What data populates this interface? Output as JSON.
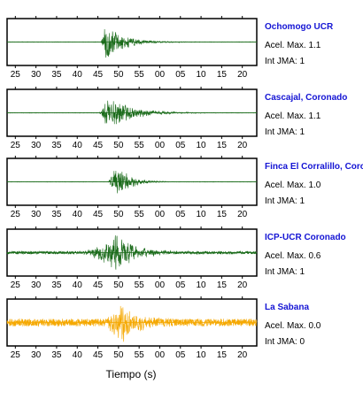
{
  "colors": {
    "station_name": "#1414d4",
    "frame": "#000000"
  },
  "xlabel": "Tiempo (s)",
  "tick_labels": [
    "25",
    "30",
    "35",
    "40",
    "45",
    "50",
    "55",
    "00",
    "05",
    "10",
    "15",
    "20"
  ],
  "chart_data": [
    {
      "type": "line",
      "name": "Ochomogo UCR",
      "accel_label": "Acel. Max. 1.1",
      "jma_label": "Int JMA: 1",
      "color": "#1a6b1a",
      "onset": 45.7,
      "peak": 47.0,
      "amplitude": 0.95,
      "duration": 14,
      "noise": 0.01,
      "seed": 11
    },
    {
      "type": "line",
      "name": "Cascajal, Coronado",
      "accel_label": "Acel. Max. 1.1",
      "jma_label": "Int JMA: 1",
      "color": "#1a6b1a",
      "onset": 45.3,
      "peak": 47.2,
      "amplitude": 0.95,
      "duration": 18,
      "noise": 0.01,
      "seed": 23
    },
    {
      "type": "line",
      "name": "Finca El Corralillo, Coronado",
      "accel_label": "Acel. Max. 1.0",
      "jma_label": "Int JMA: 1",
      "color": "#1a6b1a",
      "onset": 47.5,
      "peak": 49.5,
      "amplitude": 0.95,
      "duration": 10,
      "noise": 0.01,
      "seed": 37
    },
    {
      "type": "line",
      "name": "ICP-UCR Coronado",
      "accel_label": "Acel. Max. 0.6",
      "jma_label": "Int JMA: 1",
      "color": "#1a6b1a",
      "onset": 41.0,
      "peak": 49.5,
      "amplitude": 0.95,
      "duration": 15,
      "noise": 0.07,
      "seed": 53
    },
    {
      "type": "line",
      "name": "La Sabana",
      "accel_label": "Acel. Max. 0.0",
      "jma_label": "Int JMA: 0",
      "color": "#f5a800",
      "onset": 46.0,
      "peak": 51.0,
      "amplitude": 0.95,
      "duration": 13,
      "noise": 0.18,
      "seed": 71
    }
  ]
}
